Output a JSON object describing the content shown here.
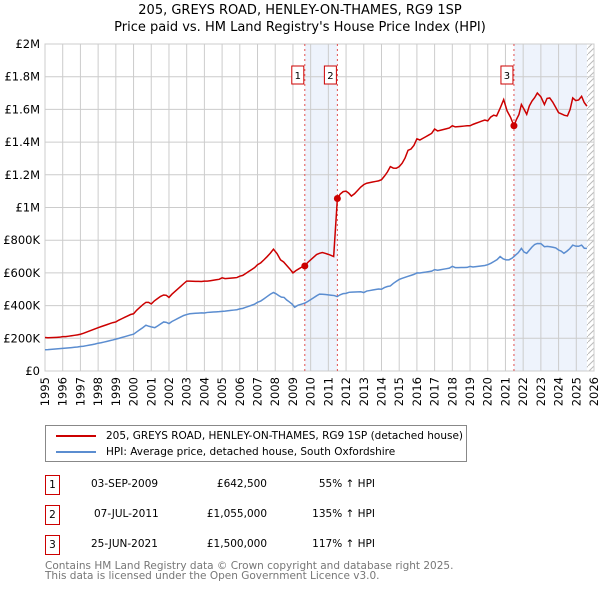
{
  "title": "205, GREYS ROAD, HENLEY-ON-THAMES, RG9 1SP",
  "subtitle": "Price paid vs. HM Land Registry's House Price Index (HPI)",
  "colors": {
    "property": "#cc0000",
    "hpi": "#5b8dd0",
    "shade": "#eef3fc",
    "grid": "#cccccc"
  },
  "chart_data": {
    "type": "line",
    "xlim": [
      1995,
      2026
    ],
    "ylim": [
      0,
      2000000
    ],
    "y_ticks": [
      {
        "v": 0,
        "label": "£0"
      },
      {
        "v": 200000,
        "label": "£200K"
      },
      {
        "v": 400000,
        "label": "£400K"
      },
      {
        "v": 600000,
        "label": "£600K"
      },
      {
        "v": 800000,
        "label": "£800K"
      },
      {
        "v": 1000000,
        "label": "£1M"
      },
      {
        "v": 1200000,
        "label": "£1.2M"
      },
      {
        "v": 1400000,
        "label": "£1.4M"
      },
      {
        "v": 1600000,
        "label": "£1.6M"
      },
      {
        "v": 1800000,
        "label": "£1.8M"
      },
      {
        "v": 2000000,
        "label": "£2M"
      }
    ],
    "x_ticks": [
      "1995",
      "1996",
      "1997",
      "1998",
      "1999",
      "2000",
      "2001",
      "2002",
      "2003",
      "2004",
      "2005",
      "2006",
      "2007",
      "2008",
      "2009",
      "2010",
      "2011",
      "2012",
      "2013",
      "2014",
      "2015",
      "2016",
      "2017",
      "2018",
      "2019",
      "2020",
      "2021",
      "2022",
      "2023",
      "2024",
      "2025",
      "2026"
    ],
    "shaded_ranges": [
      [
        2009.67,
        2011.51
      ],
      [
        2021.48,
        2025.6
      ]
    ],
    "hatched_from": 2025.6,
    "series": [
      {
        "name": "205, GREYS ROAD, HENLEY-ON-THAMES, RG9 1SP (detached house)",
        "x": [
          1995,
          1996,
          1997,
          1998,
          1999,
          2000,
          2000.7,
          2001,
          2001.7,
          2002,
          2003,
          2004,
          2005,
          2006,
          2007,
          2007.9,
          2008.3,
          2009,
          2009.67,
          2010.5,
          2011.3,
          2011.51,
          2012,
          2012.3,
          2013,
          2014,
          2014.5,
          2015,
          2015.5,
          2016,
          2017,
          2018,
          2019,
          2020,
          2020.5,
          2020.9,
          2021.48,
          2021.9,
          2022.2,
          2022.8,
          2023.2,
          2023.5,
          2024,
          2024.5,
          2024.8,
          2025.3,
          2025.6
        ],
        "y": [
          205000,
          210000,
          225000,
          265000,
          300000,
          350000,
          420000,
          410000,
          465000,
          450000,
          550000,
          550000,
          570000,
          580000,
          650000,
          745000,
          680000,
          600000,
          642500,
          720000,
          700000,
          1055000,
          1100000,
          1070000,
          1140000,
          1170000,
          1250000,
          1250000,
          1350000,
          1420000,
          1480000,
          1500000,
          1500000,
          1530000,
          1560000,
          1660000,
          1500000,
          1630000,
          1570000,
          1700000,
          1630000,
          1670000,
          1580000,
          1560000,
          1670000,
          1680000,
          1620000
        ]
      },
      {
        "name": "HPI: Average price, detached house, South Oxfordshire",
        "x": [
          1995,
          1997,
          1998,
          1999,
          2000,
          2000.7,
          2001.2,
          2001.7,
          2002,
          2003,
          2004,
          2005,
          2006,
          2007,
          2007.9,
          2008.5,
          2009.1,
          2009.67,
          2010.5,
          2011.5,
          2012,
          2013,
          2014,
          2014.5,
          2015,
          2016,
          2017,
          2018,
          2019,
          2020,
          2020.7,
          2021.2,
          2021.9,
          2022.2,
          2022.8,
          2023.2,
          2024,
          2024.3,
          2024.8,
          2025.3,
          2025.6
        ],
        "y": [
          130000,
          150000,
          170000,
          195000,
          225000,
          280000,
          265000,
          300000,
          290000,
          345000,
          355000,
          365000,
          380000,
          420000,
          480000,
          450000,
          390000,
          415000,
          470000,
          455000,
          475000,
          480000,
          500000,
          520000,
          560000,
          600000,
          620000,
          640000,
          640000,
          650000,
          700000,
          680000,
          750000,
          720000,
          780000,
          760000,
          740000,
          720000,
          770000,
          770000,
          750000
        ]
      }
    ],
    "sales": [
      {
        "id": "1",
        "x": 2009.67,
        "y": 642500
      },
      {
        "id": "2",
        "x": 2011.51,
        "y": 1055000
      },
      {
        "id": "3",
        "x": 2021.48,
        "y": 1500000
      }
    ]
  },
  "legend": {
    "property": "205, GREYS ROAD, HENLEY-ON-THAMES, RG9 1SP (detached house)",
    "hpi": "HPI: Average price, detached house, South Oxfordshire"
  },
  "transactions": [
    {
      "num": "1",
      "date": "03-SEP-2009",
      "price": "£642,500",
      "hpi": "55% ↑ HPI"
    },
    {
      "num": "2",
      "date": "07-JUL-2011",
      "price": "£1,055,000",
      "hpi": "135% ↑ HPI"
    },
    {
      "num": "3",
      "date": "25-JUN-2021",
      "price": "£1,500,000",
      "hpi": "117% ↑ HPI"
    }
  ],
  "footer": {
    "line1": "Contains HM Land Registry data © Crown copyright and database right 2025.",
    "line2": "This data is licensed under the Open Government Licence v3.0."
  }
}
